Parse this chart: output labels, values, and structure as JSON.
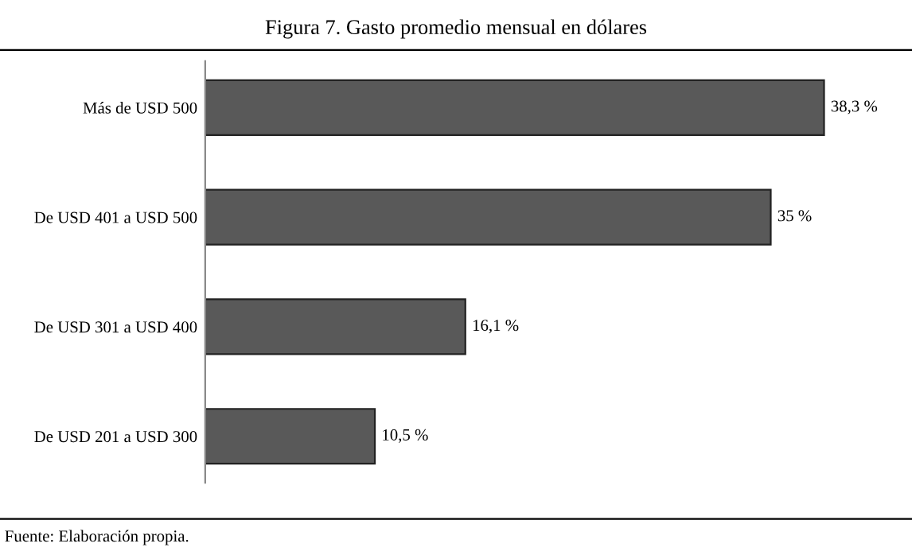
{
  "chart_data": {
    "type": "bar",
    "orientation": "horizontal",
    "title": "Figura 7. Gasto promedio mensual en dólares",
    "categories": [
      "Más de USD 500",
      "De USD 401 a USD 500",
      "De USD 301 a USD 400",
      "De USD 201 a USD 300"
    ],
    "values": [
      38.3,
      35,
      16.1,
      10.5
    ],
    "value_labels": [
      "38,3 %",
      "35 %",
      "16,1 %",
      "10,5 %"
    ],
    "color": "#595959",
    "tick_labels": "y",
    "grid": false,
    "legend": false,
    "annotations": [
      "Fuente: Elaboración propia."
    ]
  }
}
